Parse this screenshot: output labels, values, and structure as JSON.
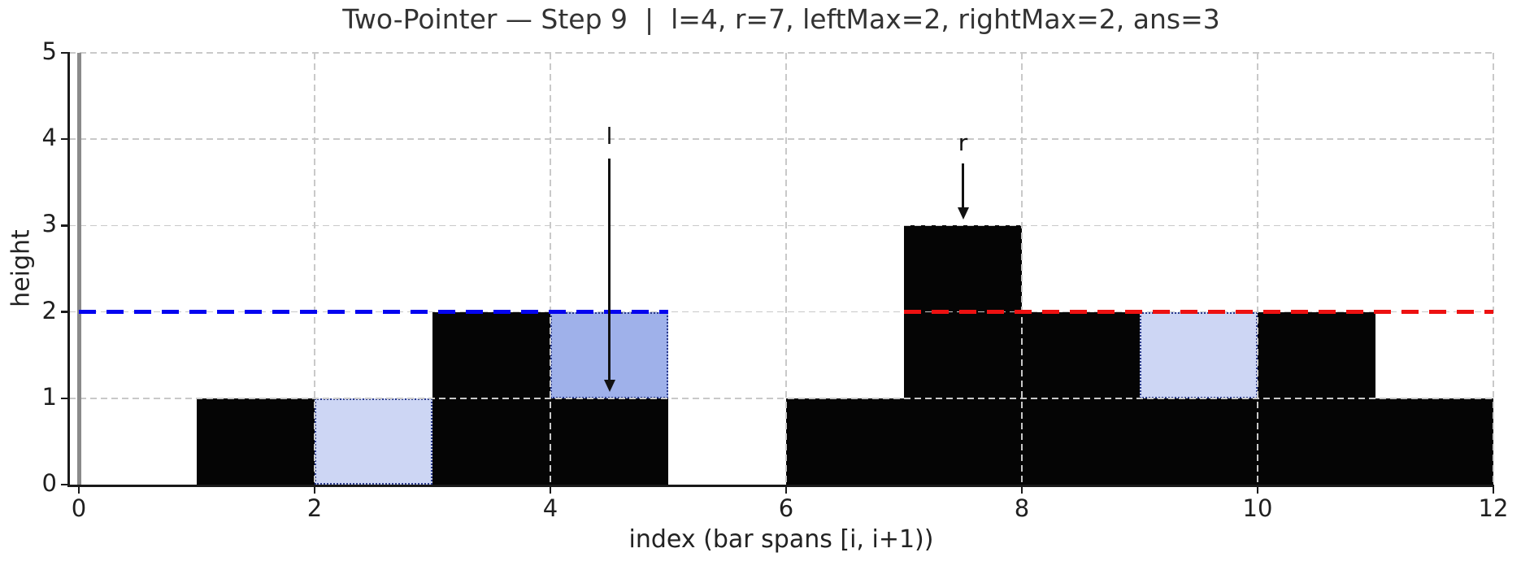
{
  "chart_data": {
    "type": "bar",
    "title": "Two-Pointer — Step 9  |  l=4, r=7, leftMax=2, rightMax=2, ans=3",
    "xlabel": "index (bar spans [i, i+1))",
    "ylabel": "height",
    "xlim": [
      -0.08,
      12
    ],
    "ylim": [
      0,
      5
    ],
    "xticks": [
      0,
      2,
      4,
      6,
      8,
      10,
      12
    ],
    "yticks": [
      0,
      1,
      2,
      3,
      4,
      5
    ],
    "grid": {
      "style": "dashed",
      "drawn_above_bars": true,
      "color": "#c9c9c9"
    },
    "legend_position": "none",
    "bar_heights": [
      0,
      1,
      0,
      2,
      1,
      0,
      1,
      3,
      2,
      1,
      2,
      1
    ],
    "bar_color": "#050505",
    "water_cells": [
      {
        "index": 2,
        "y0": 0,
        "y1": 1,
        "style": "filled"
      },
      {
        "index": 4,
        "y0": 1,
        "y1": 2,
        "style": "current"
      },
      {
        "index": 9,
        "y0": 1,
        "y1": 2,
        "style": "filled"
      }
    ],
    "water_colors": {
      "filled": "#cdd6f4",
      "current": "#9fb1ea",
      "edge": "#2a3a8c"
    },
    "hlines": [
      {
        "name": "leftMax",
        "y": 2,
        "x0": 0,
        "x1": 5,
        "color": "#0404f0"
      },
      {
        "name": "rightMax",
        "y": 2,
        "x0": 7,
        "x1": 12,
        "color": "#ed1111"
      }
    ],
    "vline": {
      "name": "origin-wall",
      "x": 0,
      "y0": 0,
      "y1": 5,
      "color": "#8a8a8a"
    },
    "pointers": [
      {
        "label": "l",
        "x": 4.5,
        "label_y": 4.02,
        "tail_y": 3.78,
        "tip_y": 1.07
      },
      {
        "label": "r",
        "x": 7.5,
        "label_y": 3.95,
        "tail_y": 3.72,
        "tip_y": 3.07
      }
    ],
    "state": {
      "step": 9,
      "l": 4,
      "r": 7,
      "leftMax": 2,
      "rightMax": 2,
      "ans": 3
    }
  }
}
